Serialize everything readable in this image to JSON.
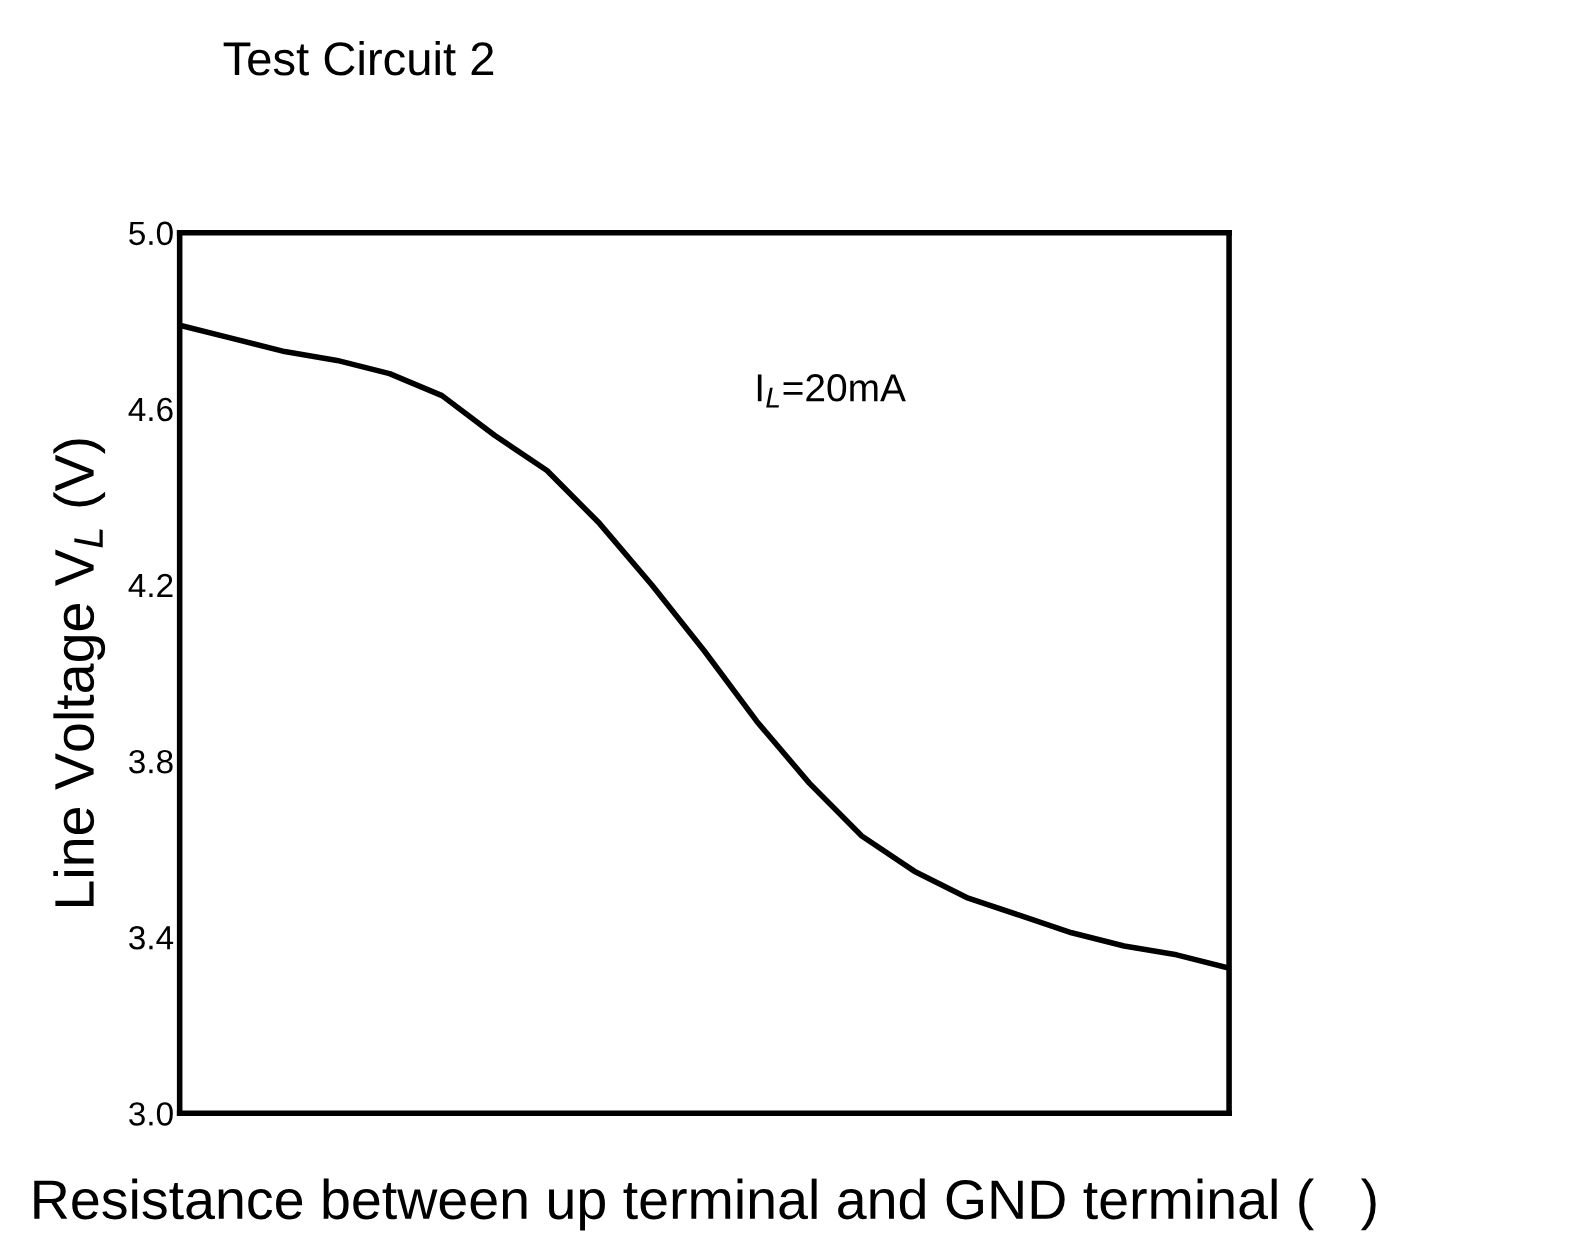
{
  "chart_data": {
    "type": "line",
    "title": "Test Circuit 2",
    "xlabel": "Resistance between up terminal and GND terminal (   )",
    "ylabel": "Line Voltage V$_{L}$ (V)",
    "annotations": [
      "I$_{L}$=20mA"
    ],
    "categories": [
      null,
      null,
      null,
      null,
      null,
      null,
      null,
      null,
      null,
      null,
      null,
      null,
      null,
      null,
      null,
      null,
      null,
      null,
      null,
      null,
      null
    ],
    "series": [
      {
        "color": "#000000",
        "values": [
          4.79,
          4.76,
          4.73,
          4.71,
          4.68,
          4.63,
          4.54,
          4.46,
          4.34,
          4.2,
          4.05,
          3.89,
          3.75,
          3.63,
          3.55,
          3.49,
          3.45,
          3.41,
          3.38,
          3.36,
          3.33
        ]
      }
    ],
    "ylim": [
      3.0,
      5.0
    ],
    "yticks": [
      {
        "value": 3.0,
        "label": "3.0"
      },
      {
        "value": 3.4,
        "label": "3.4"
      },
      {
        "value": 3.8,
        "label": "3.8"
      },
      {
        "value": 4.2,
        "label": "4.2"
      },
      {
        "value": 4.6,
        "label": "4.6"
      },
      {
        "value": 5.0,
        "label": "5.0"
      }
    ],
    "grid": false,
    "legend": false,
    "marker": "none",
    "line_style": "solid"
  }
}
